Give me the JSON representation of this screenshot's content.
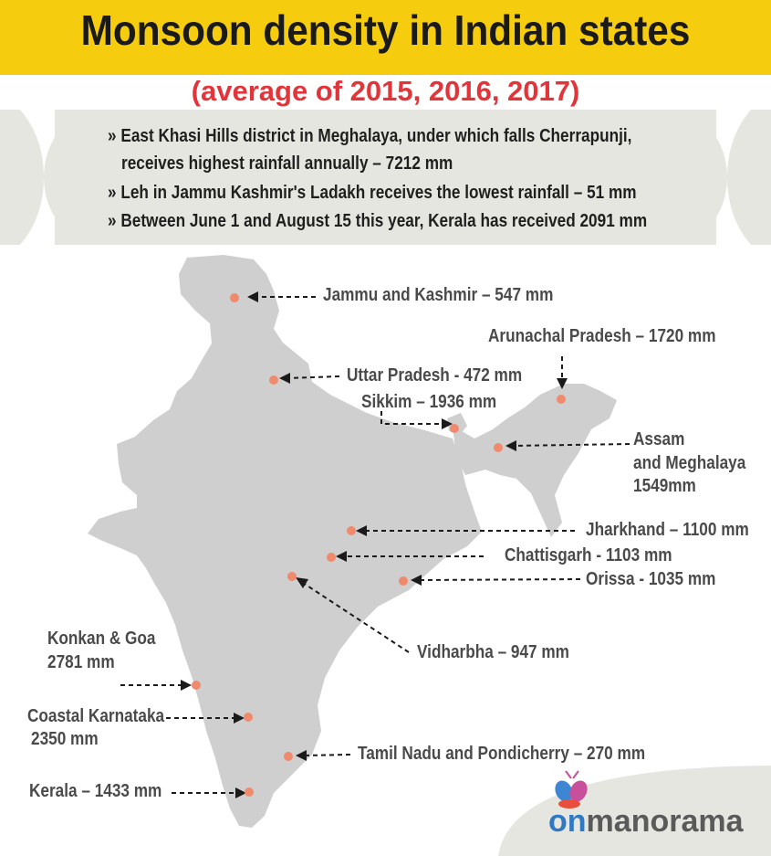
{
  "header": {
    "title": "Monsoon density in Indian states",
    "subtitle": "(average of 2015, 2016, 2017)"
  },
  "facts": [
    "» East Khasi Hills district in Meghalaya, under which falls Cherrapunji,",
    "receives highest rainfall annually – 7212 mm",
    "» Leh in Jammu Kashmir's Ladakh receives the lowest rainfall – 51 mm",
    "» Between June 1 and August 15 this year, Kerala has received 2091 mm"
  ],
  "map": {
    "labels": {
      "jk": "Jammu and Kashmir – 547 mm",
      "arunachal": "Arunachal Pradesh – 1720 mm",
      "up": "Uttar Pradesh - 472 mm",
      "sikkim": "Sikkim – 1936 mm",
      "assam_1": "Assam",
      "assam_2": "and Meghalaya",
      "assam_3": "1549mm",
      "jharkhand": "Jharkhand – 1100 mm",
      "chattisgarh": "Chattisgarh - 1103 mm",
      "orissa": "Orissa - 1035 mm",
      "vidharbha": "Vidharbha – 947 mm",
      "konkan_1": "Konkan & Goa",
      "konkan_2": "2781 mm",
      "karnataka_1": "Coastal Karnataka",
      "karnataka_2": "2350 mm",
      "tamilnadu": "Tamil Nadu and Pondicherry – 270 mm",
      "kerala": "Kerala – 1433 mm"
    }
  },
  "logo": {
    "part1": "on",
    "part2": "manorama"
  },
  "colors": {
    "title_bg": "#f6cd0e",
    "subtitle": "#e3343a",
    "map": "#cfcfcf",
    "dot": "#ef8a6c",
    "band": "#e6e6e1"
  }
}
